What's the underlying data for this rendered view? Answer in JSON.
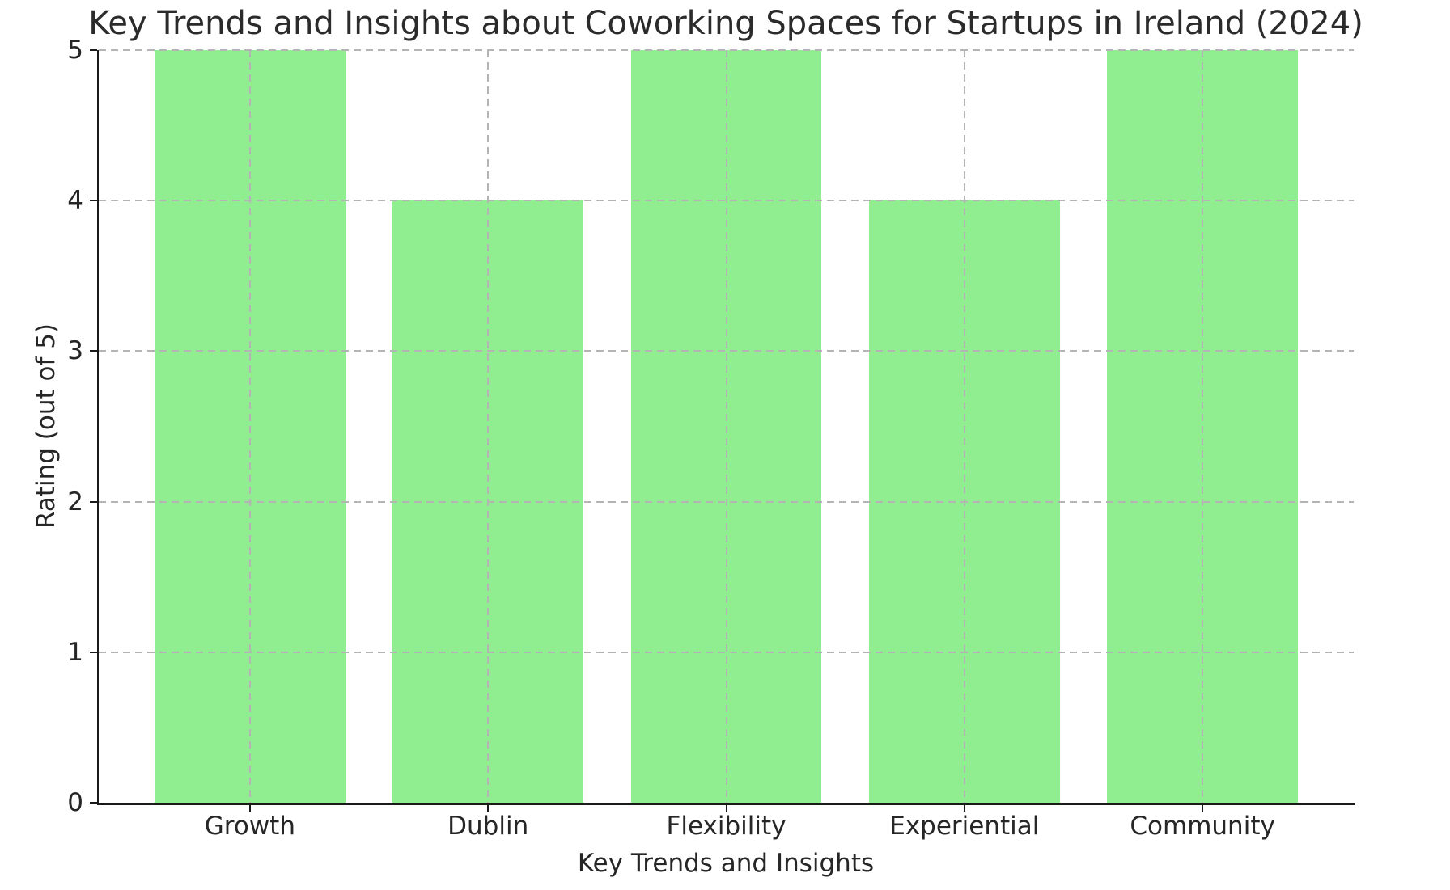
{
  "chart_data": {
    "type": "bar",
    "title": "Key Trends and Insights about Coworking Spaces for Startups in Ireland (2024)",
    "categories": [
      "Growth",
      "Dublin",
      "Flexibility",
      "Experiential",
      "Community"
    ],
    "values": [
      5,
      4,
      5,
      4,
      5
    ],
    "xlabel": "Key Trends and Insights",
    "ylabel": "Rating (out of 5)",
    "ylim": [
      0,
      5
    ],
    "yticks": [
      0,
      1,
      2,
      3,
      4,
      5
    ],
    "grid": "both-dashed-over-bars",
    "legend_position": "none",
    "bar_color": "#90EE90",
    "grid_color": "#b4b4b4",
    "axis_color": "#1a1a1a",
    "text_color": "#262626",
    "background_color": "#ffffff"
  }
}
